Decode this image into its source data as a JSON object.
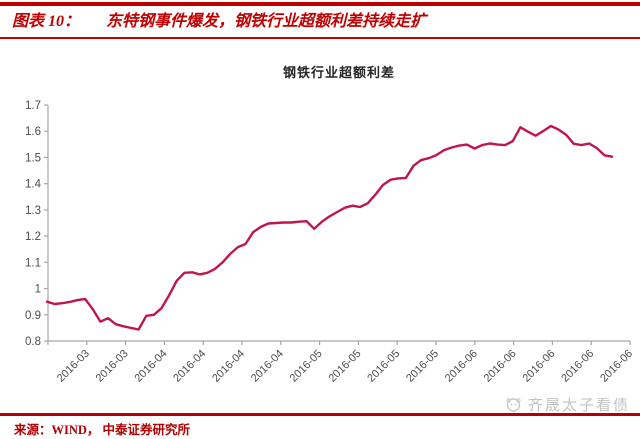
{
  "header": {
    "figure_label": "图表 10：",
    "figure_title": "东特钢事件爆发，钢铁行业超额利差持续走扩"
  },
  "chart_data": {
    "type": "line",
    "title": "钢铁行业超额利差",
    "xlabel": "",
    "ylabel": "",
    "ylim": [
      0.8,
      1.7
    ],
    "grid": false,
    "legend_position": "none",
    "y_tick_labels": [
      "0.8",
      "0.9",
      "1",
      "1.1",
      "1.2",
      "1.3",
      "1.4",
      "1.5",
      "1.6",
      "1.7"
    ],
    "x_tick_labels": [
      "2016-03",
      "2016-03",
      "2016-04",
      "2016-04",
      "2016-04",
      "2016-04",
      "2016-05",
      "2016-05",
      "2016-05",
      "2016-05",
      "2016-06",
      "2016-06",
      "2016-06",
      "2016-06",
      "2016-06"
    ],
    "series": [
      {
        "name": "钢铁行业超额利差",
        "color": "#c0174b",
        "values": [
          0.95,
          0.941,
          0.944,
          0.949,
          0.956,
          0.96,
          0.921,
          0.874,
          0.887,
          0.864,
          0.856,
          0.85,
          0.844,
          0.896,
          0.9,
          0.925,
          0.975,
          1.03,
          1.06,
          1.062,
          1.054,
          1.06,
          1.075,
          1.1,
          1.132,
          1.158,
          1.17,
          1.215,
          1.235,
          1.248,
          1.25,
          1.252,
          1.252,
          1.255,
          1.257,
          1.228,
          1.255,
          1.275,
          1.292,
          1.308,
          1.316,
          1.311,
          1.325,
          1.358,
          1.395,
          1.415,
          1.42,
          1.422,
          1.468,
          1.49,
          1.497,
          1.509,
          1.528,
          1.538,
          1.545,
          1.549,
          1.534,
          1.547,
          1.553,
          1.549,
          1.547,
          1.562,
          1.615,
          1.598,
          1.583,
          1.601,
          1.62,
          1.606,
          1.586,
          1.552,
          1.547,
          1.553,
          1.536,
          1.508,
          1.503
        ]
      }
    ]
  },
  "footer": {
    "source": "来源：WIND， 中泰证券研究所"
  },
  "watermark": {
    "text": "齐晟太子看债",
    "logo_icon": "panda-face-icon"
  },
  "colors": {
    "accent_red": "#c00000",
    "footer_red": "#b40000",
    "series_line": "#c0174b",
    "axis_line": "#a6a6a6",
    "tick_label": "#4d4d4d",
    "chart_title": "#262626",
    "watermark_gray": "#c3c3c3"
  }
}
